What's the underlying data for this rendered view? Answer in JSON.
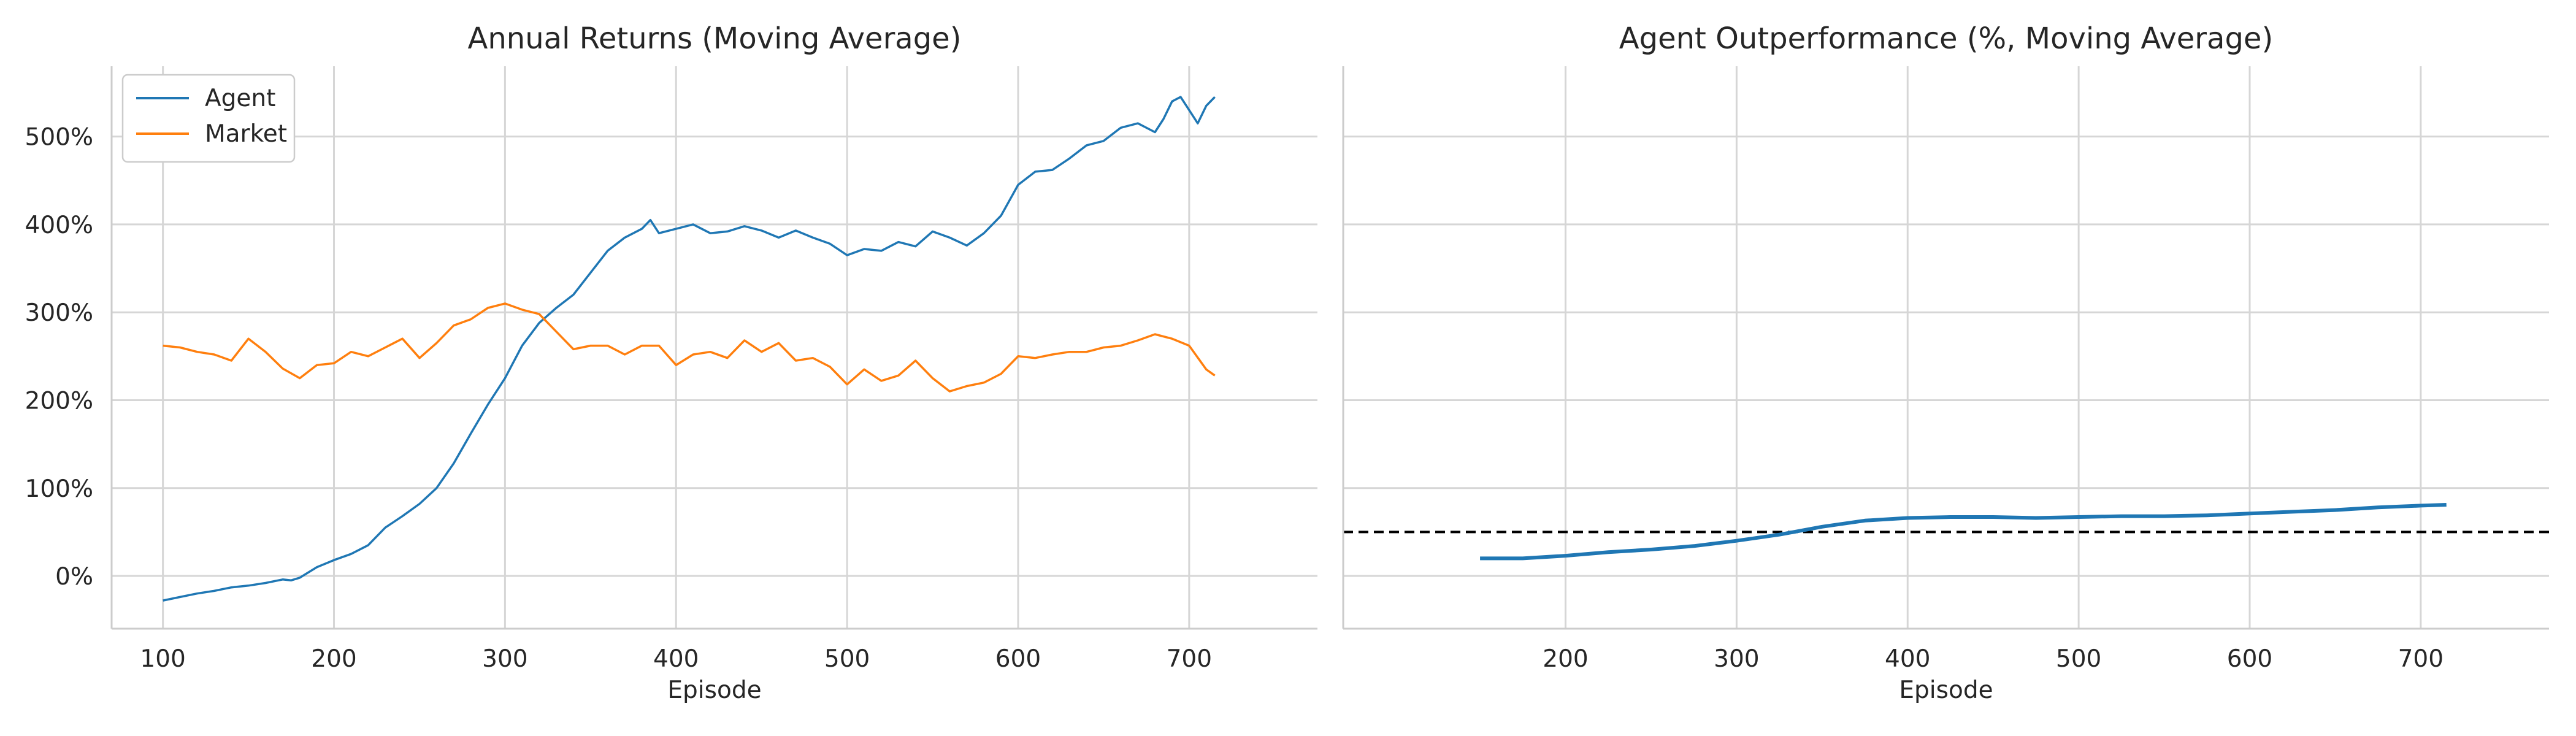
{
  "chart_data": [
    {
      "type": "line",
      "title": "Annual Returns (Moving Average)",
      "xlabel": "Episode",
      "ylabel": "",
      "xlim": [
        70,
        775
      ],
      "ylim": [
        -60,
        580
      ],
      "xticks": [
        100,
        200,
        300,
        400,
        500,
        600,
        700
      ],
      "xtick_labels": [
        "100",
        "200",
        "300",
        "400",
        "500",
        "600",
        "700"
      ],
      "yticks": [
        0,
        100,
        200,
        300,
        400,
        500
      ],
      "ytick_labels": [
        "0%",
        "100%",
        "200%",
        "300%",
        "400%",
        "500%"
      ],
      "grid": true,
      "legend_position": "top-left",
      "series": [
        {
          "name": "Agent",
          "color": "#1f77b4",
          "x": [
            100,
            110,
            120,
            130,
            140,
            150,
            160,
            170,
            175,
            180,
            190,
            200,
            210,
            220,
            230,
            240,
            250,
            260,
            270,
            280,
            290,
            300,
            310,
            320,
            330,
            340,
            350,
            360,
            370,
            380,
            385,
            390,
            400,
            410,
            420,
            430,
            440,
            450,
            460,
            470,
            480,
            490,
            500,
            510,
            520,
            530,
            540,
            550,
            560,
            570,
            580,
            590,
            600,
            610,
            620,
            630,
            640,
            650,
            660,
            670,
            680,
            685,
            690,
            695,
            700,
            705,
            710,
            715
          ],
          "y": [
            -28,
            -24,
            -20,
            -17,
            -13,
            -11,
            -8,
            -4,
            -5,
            -2,
            10,
            18,
            25,
            35,
            55,
            68,
            82,
            100,
            128,
            162,
            195,
            225,
            262,
            288,
            305,
            320,
            345,
            370,
            385,
            395,
            405,
            390,
            395,
            400,
            390,
            392,
            398,
            393,
            385,
            393,
            385,
            378,
            365,
            372,
            370,
            380,
            375,
            392,
            385,
            376,
            390,
            410,
            445,
            460,
            462,
            475,
            490,
            495,
            510,
            515,
            505,
            520,
            540,
            545,
            530,
            515,
            535,
            545
          ]
        },
        {
          "name": "Market",
          "color": "#ff7f0e",
          "x": [
            100,
            110,
            120,
            130,
            140,
            150,
            160,
            170,
            180,
            190,
            200,
            210,
            220,
            230,
            240,
            250,
            260,
            270,
            280,
            290,
            300,
            310,
            320,
            330,
            340,
            350,
            360,
            370,
            380,
            390,
            400,
            410,
            420,
            430,
            440,
            450,
            460,
            470,
            480,
            490,
            500,
            510,
            520,
            530,
            540,
            550,
            560,
            570,
            580,
            590,
            600,
            610,
            620,
            630,
            640,
            650,
            660,
            670,
            680,
            690,
            700,
            710,
            715
          ],
          "y": [
            262,
            260,
            255,
            252,
            245,
            270,
            255,
            236,
            225,
            240,
            242,
            255,
            250,
            260,
            270,
            248,
            265,
            285,
            292,
            305,
            310,
            303,
            298,
            278,
            258,
            262,
            262,
            252,
            262,
            262,
            240,
            252,
            255,
            248,
            268,
            255,
            265,
            245,
            248,
            238,
            218,
            235,
            222,
            228,
            245,
            225,
            210,
            216,
            220,
            230,
            250,
            248,
            252,
            255,
            255,
            260,
            262,
            268,
            275,
            270,
            262,
            235,
            228
          ]
        }
      ]
    },
    {
      "type": "line",
      "title": "Agent Outperformance (%, Moving Average)",
      "xlabel": "Episode",
      "ylabel": "",
      "xlim": [
        70,
        775
      ],
      "ylim": [
        -60,
        580
      ],
      "xticks": [
        200,
        300,
        400,
        500,
        600,
        700
      ],
      "xtick_labels": [
        "200",
        "300",
        "400",
        "500",
        "600",
        "700"
      ],
      "yticks": [
        0,
        100,
        200,
        300,
        400,
        500
      ],
      "shared_y_with_left": true,
      "grid": true,
      "series": [
        {
          "color": "#1f77b4",
          "x": [
            150,
            175,
            200,
            225,
            250,
            275,
            300,
            325,
            350,
            375,
            400,
            425,
            450,
            475,
            500,
            525,
            550,
            575,
            600,
            625,
            650,
            675,
            700,
            715
          ],
          "y": [
            20,
            20,
            23,
            27,
            30,
            34,
            40,
            47,
            56,
            63,
            66,
            67,
            67,
            66,
            67,
            68,
            68,
            69,
            71,
            73,
            75,
            78,
            80,
            81
          ]
        }
      ],
      "reference_line": {
        "y": 50,
        "style": "dashed",
        "color": "#000000"
      }
    }
  ]
}
